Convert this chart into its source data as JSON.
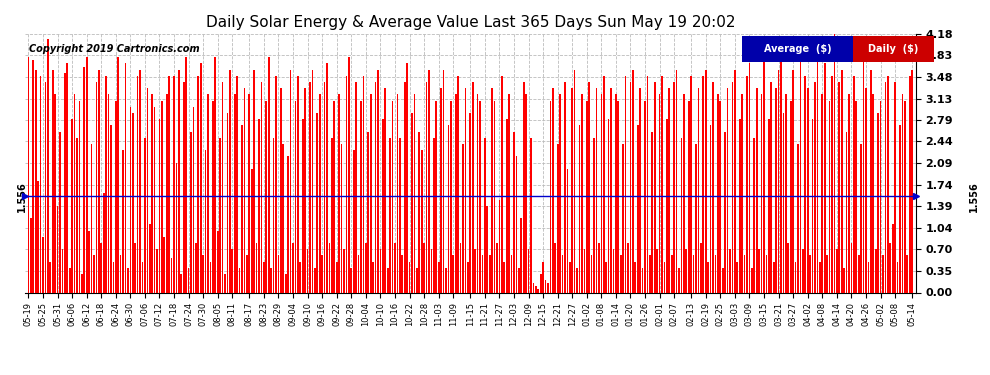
{
  "title": "Daily Solar Energy & Average Value Last 365 Days Sun May 19 20:02",
  "copyright": "Copyright 2019 Cartronics.com",
  "average_value": 1.556,
  "average_label": "1.556",
  "bar_color": "#FF0000",
  "average_line_color": "#0000CC",
  "background_color": "#FFFFFF",
  "ylim": [
    0.0,
    4.18
  ],
  "yticks": [
    0.0,
    0.35,
    0.7,
    1.04,
    1.39,
    1.74,
    2.09,
    2.44,
    2.79,
    3.13,
    3.48,
    3.83,
    4.18
  ],
  "legend_average_bg": "#0000AA",
  "legend_daily_bg": "#CC0000",
  "legend_text_color": "#FFFFFF",
  "grid_color": "#BBBBBB",
  "x_tick_labels": [
    "05-19",
    "05-25",
    "05-31",
    "06-06",
    "06-12",
    "06-18",
    "06-24",
    "06-30",
    "07-06",
    "07-12",
    "07-18",
    "07-24",
    "07-30",
    "08-05",
    "08-11",
    "08-17",
    "08-23",
    "08-29",
    "09-04",
    "09-10",
    "09-16",
    "09-22",
    "09-28",
    "10-04",
    "10-10",
    "10-16",
    "10-22",
    "10-28",
    "11-03",
    "11-09",
    "11-15",
    "11-21",
    "11-27",
    "12-03",
    "12-09",
    "12-15",
    "12-21",
    "12-27",
    "01-02",
    "01-08",
    "01-14",
    "01-20",
    "01-26",
    "02-01",
    "02-07",
    "02-13",
    "02-19",
    "02-25",
    "03-03",
    "03-09",
    "03-15",
    "03-21",
    "03-27",
    "04-02",
    "04-08",
    "04-14",
    "04-20",
    "04-26",
    "05-02",
    "05-08",
    "05-14"
  ],
  "daily_values": [
    3.8,
    1.2,
    3.75,
    3.6,
    1.8,
    3.5,
    0.9,
    3.4,
    4.1,
    0.5,
    3.6,
    3.2,
    1.4,
    2.6,
    0.7,
    3.55,
    3.7,
    0.4,
    2.8,
    3.2,
    2.5,
    3.1,
    0.3,
    3.65,
    3.8,
    1.0,
    2.4,
    0.6,
    3.4,
    3.6,
    0.8,
    1.6,
    3.5,
    3.2,
    2.7,
    0.5,
    3.1,
    3.8,
    0.6,
    2.3,
    3.7,
    0.4,
    3.0,
    2.9,
    0.8,
    3.5,
    3.6,
    0.5,
    2.5,
    3.3,
    1.1,
    3.2,
    3.0,
    0.7,
    2.8,
    3.1,
    0.9,
    3.2,
    3.5,
    0.55,
    3.5,
    2.1,
    3.6,
    0.3,
    3.4,
    3.8,
    0.4,
    2.6,
    3.0,
    0.8,
    3.5,
    3.7,
    0.6,
    2.3,
    3.2,
    0.5,
    3.1,
    3.8,
    1.0,
    2.5,
    3.4,
    0.3,
    2.9,
    3.6,
    0.7,
    3.2,
    3.5,
    0.4,
    2.7,
    3.3,
    0.6,
    3.2,
    2.0,
    3.6,
    0.8,
    2.8,
    3.4,
    0.5,
    3.1,
    3.8,
    0.4,
    2.5,
    3.5,
    0.6,
    3.3,
    2.4,
    0.3,
    2.2,
    3.6,
    0.8,
    3.1,
    3.5,
    0.5,
    2.8,
    3.3,
    0.7,
    3.4,
    3.6,
    0.4,
    2.9,
    3.2,
    0.6,
    3.4,
    3.7,
    0.8,
    2.5,
    3.1,
    0.5,
    3.2,
    2.4,
    0.7,
    3.5,
    3.8,
    0.4,
    2.3,
    3.4,
    0.6,
    3.1,
    3.5,
    0.8,
    2.6,
    3.2,
    0.5,
    3.4,
    3.6,
    0.7,
    2.8,
    3.3,
    0.4,
    2.5,
    3.1,
    0.8,
    3.2,
    2.5,
    0.6,
    3.4,
    3.7,
    0.5,
    2.9,
    3.2,
    0.4,
    2.6,
    2.3,
    0.8,
    3.4,
    3.6,
    0.7,
    2.5,
    3.1,
    0.5,
    3.3,
    3.6,
    0.4,
    2.7,
    3.1,
    0.6,
    3.2,
    3.5,
    0.8,
    2.4,
    3.3,
    0.5,
    2.9,
    3.4,
    0.7,
    3.2,
    3.1,
    0.6,
    2.5,
    1.4,
    0.6,
    3.3,
    3.1,
    0.8,
    1.5,
    3.5,
    0.5,
    2.8,
    3.2,
    0.6,
    2.6,
    2.2,
    0.4,
    1.2,
    3.4,
    3.2,
    0.7,
    2.5,
    0.15,
    0.1,
    0.05,
    0.3,
    0.5,
    0.2,
    0.15,
    3.1,
    3.3,
    0.8,
    2.4,
    3.2,
    0.6,
    3.4,
    2.0,
    0.5,
    3.3,
    3.6,
    0.4,
    2.7,
    3.2,
    0.7,
    3.1,
    3.4,
    0.6,
    2.5,
    3.3,
    0.8,
    3.2,
    3.5,
    0.5,
    2.8,
    3.3,
    0.7,
    3.2,
    3.1,
    0.6,
    2.4,
    3.5,
    0.8,
    3.4,
    3.6,
    0.5,
    2.7,
    3.3,
    0.4,
    3.1,
    3.5,
    0.6,
    2.6,
    3.4,
    0.7,
    3.2,
    3.5,
    0.5,
    2.8,
    3.3,
    0.6,
    3.4,
    3.6,
    0.4,
    2.5,
    3.2,
    0.7,
    3.1,
    3.5,
    0.6,
    2.4,
    3.3,
    0.8,
    3.5,
    3.6,
    0.5,
    2.7,
    3.4,
    0.6,
    3.2,
    3.1,
    0.4,
    2.6,
    3.3,
    0.7,
    3.4,
    3.6,
    0.5,
    2.8,
    3.2,
    0.6,
    3.5,
    3.7,
    0.4,
    2.5,
    3.3,
    0.7,
    3.2,
    4.0,
    0.6,
    2.8,
    3.4,
    0.5,
    3.3,
    3.6,
    4.1,
    2.9,
    3.2,
    0.8,
    3.1,
    3.6,
    0.5,
    2.4,
    4.0,
    0.7,
    3.5,
    3.3,
    0.6,
    2.8,
    3.4,
    4.15,
    0.5,
    3.2,
    3.7,
    0.6,
    3.1,
    3.5,
    4.18,
    0.7,
    3.4,
    3.6,
    0.4,
    2.6,
    3.2,
    0.8,
    3.5,
    3.1,
    0.6,
    2.4,
    4.05,
    3.3,
    0.5,
    3.6,
    3.2,
    0.7,
    2.9,
    3.1,
    0.6,
    3.4,
    3.5,
    0.8,
    1.1,
    3.4,
    0.5,
    2.7,
    3.2,
    3.1,
    0.6,
    3.5,
    3.6
  ]
}
